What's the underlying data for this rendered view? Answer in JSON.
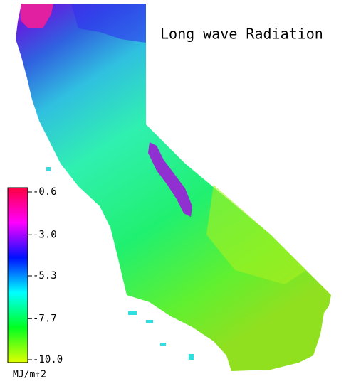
{
  "title": "Long wave Radiation",
  "colorbar": {
    "lim": [
      -10,
      -0.6
    ],
    "ticks": [
      -0.6,
      {
        "value": -3,
        "label": "-3.0"
      },
      -5.3,
      -7.7,
      {
        "value": -10,
        "label": "-10.0"
      }
    ],
    "colors": [
      "#e0ff00",
      "#00ff20",
      "#00ffff",
      "#0010ff",
      "#ff00ff",
      "#ff0040"
    ],
    "unit": "MJ/m↑2"
  }
}
